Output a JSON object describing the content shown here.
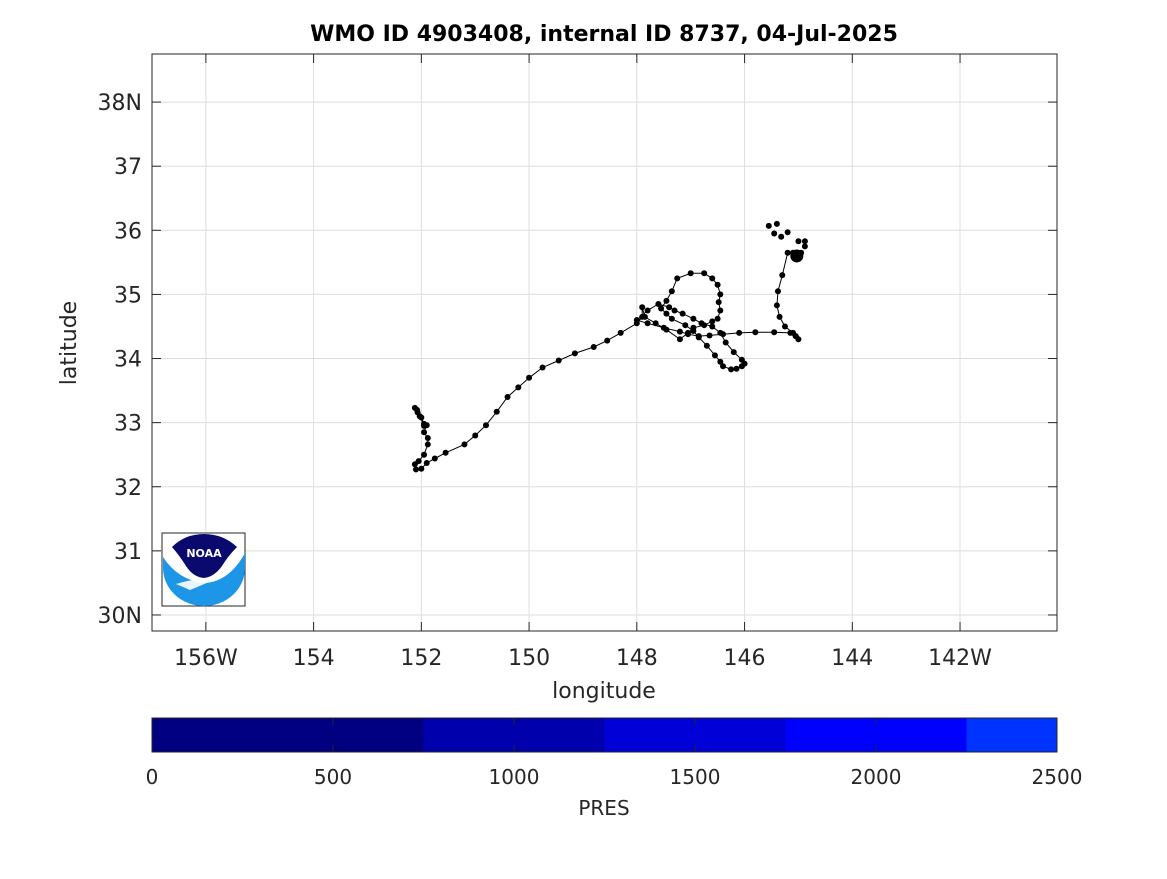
{
  "chart_data": [
    {
      "type": "scatter",
      "title": "WMO ID 4903408, internal ID 8737, 04-Jul-2025",
      "xlabel": "longitude",
      "ylabel": "latitude",
      "xlim": [
        -157,
        -140.2
      ],
      "ylim": [
        29.75,
        38.75
      ],
      "grid": true,
      "line_color": "#000000",
      "marker_color": "#000000",
      "x_ticks": [
        {
          "value": -156,
          "label": "156W"
        },
        {
          "value": -154,
          "label": "154"
        },
        {
          "value": -152,
          "label": "152"
        },
        {
          "value": -150,
          "label": "150"
        },
        {
          "value": -148,
          "label": "148"
        },
        {
          "value": -146,
          "label": "146"
        },
        {
          "value": -144,
          "label": "144"
        },
        {
          "value": -142,
          "label": "142W"
        }
      ],
      "y_ticks": [
        {
          "value": 30,
          "label": "30N"
        },
        {
          "value": 31,
          "label": "31"
        },
        {
          "value": 32,
          "label": "32"
        },
        {
          "value": 33,
          "label": "33"
        },
        {
          "value": 34,
          "label": "34"
        },
        {
          "value": 35,
          "label": "35"
        },
        {
          "value": 36,
          "label": "36"
        },
        {
          "value": 37,
          "label": "37"
        },
        {
          "value": 38,
          "label": "38N"
        }
      ],
      "track": [
        [
          -145.03,
          35.6
        ],
        [
          -145.1,
          35.65
        ],
        [
          -145.2,
          35.65
        ],
        [
          -145.3,
          35.3
        ],
        [
          -145.38,
          35.05
        ],
        [
          -145.4,
          34.83
        ],
        [
          -145.35,
          34.65
        ],
        [
          -145.25,
          34.5
        ],
        [
          -145.1,
          34.4
        ],
        [
          -145.05,
          34.35
        ],
        [
          -145.0,
          34.3
        ],
        [
          -145.05,
          34.35
        ],
        [
          -145.15,
          34.4
        ],
        [
          -145.45,
          34.41
        ],
        [
          -145.8,
          34.41
        ],
        [
          -146.1,
          34.4
        ],
        [
          -146.4,
          34.38
        ],
        [
          -146.65,
          34.36
        ],
        [
          -146.85,
          34.35
        ],
        [
          -147.05,
          34.38
        ],
        [
          -147.2,
          34.42
        ],
        [
          -147.5,
          34.48
        ],
        [
          -147.8,
          34.55
        ],
        [
          -148.0,
          34.6
        ],
        [
          -147.8,
          34.75
        ],
        [
          -147.6,
          34.85
        ],
        [
          -147.4,
          34.8
        ],
        [
          -147.3,
          34.75
        ],
        [
          -147.15,
          34.7
        ],
        [
          -146.95,
          34.62
        ],
        [
          -146.8,
          34.55
        ],
        [
          -146.6,
          34.5
        ],
        [
          -146.45,
          34.4
        ],
        [
          -146.35,
          34.25
        ],
        [
          -146.2,
          34.1
        ],
        [
          -146.05,
          33.98
        ],
        [
          -146.0,
          33.92
        ],
        [
          -146.05,
          33.88
        ],
        [
          -146.15,
          33.84
        ],
        [
          -146.25,
          33.83
        ],
        [
          -146.4,
          33.88
        ],
        [
          -146.45,
          33.95
        ],
        [
          -146.55,
          34.05
        ],
        [
          -146.7,
          34.2
        ],
        [
          -146.85,
          34.33
        ],
        [
          -146.95,
          34.43
        ],
        [
          -147.1,
          34.52
        ],
        [
          -147.35,
          34.62
        ],
        [
          -147.45,
          34.7
        ],
        [
          -147.55,
          34.78
        ],
        [
          -147.45,
          34.9
        ],
        [
          -147.35,
          35.05
        ],
        [
          -147.25,
          35.25
        ],
        [
          -147.0,
          35.33
        ],
        [
          -146.75,
          35.33
        ],
        [
          -146.6,
          35.25
        ],
        [
          -146.5,
          35.15
        ],
        [
          -146.45,
          35.0
        ],
        [
          -146.48,
          34.88
        ],
        [
          -146.45,
          34.75
        ],
        [
          -146.5,
          34.62
        ],
        [
          -146.6,
          34.58
        ],
        [
          -146.75,
          34.52
        ],
        [
          -146.95,
          34.48
        ],
        [
          -147.05,
          34.4
        ],
        [
          -147.2,
          34.3
        ],
        [
          -147.45,
          34.45
        ],
        [
          -147.65,
          34.55
        ],
        [
          -147.85,
          34.65
        ],
        [
          -147.9,
          34.8
        ],
        [
          -147.9,
          34.65
        ],
        [
          -148.0,
          34.55
        ],
        [
          -148.3,
          34.4
        ],
        [
          -148.55,
          34.28
        ],
        [
          -148.8,
          34.18
        ],
        [
          -149.15,
          34.08
        ],
        [
          -149.45,
          33.97
        ],
        [
          -149.75,
          33.86
        ],
        [
          -150.0,
          33.7
        ],
        [
          -150.2,
          33.55
        ],
        [
          -150.4,
          33.4
        ],
        [
          -150.6,
          33.17
        ],
        [
          -150.8,
          32.96
        ],
        [
          -151.0,
          32.8
        ],
        [
          -151.2,
          32.66
        ],
        [
          -151.55,
          32.53
        ],
        [
          -151.75,
          32.44
        ],
        [
          -151.9,
          32.37
        ],
        [
          -152.0,
          32.28
        ],
        [
          -152.1,
          32.27
        ],
        [
          -152.12,
          32.35
        ],
        [
          -152.05,
          32.4
        ],
        [
          -151.95,
          32.5
        ],
        [
          -151.88,
          32.66
        ],
        [
          -151.88,
          32.76
        ],
        [
          -151.95,
          32.85
        ],
        [
          -151.9,
          32.96
        ],
        [
          -151.95,
          32.98
        ],
        [
          -152.0,
          33.08
        ],
        [
          -152.07,
          33.16
        ],
        [
          -152.12,
          33.23
        ],
        [
          -152.08,
          33.2
        ],
        [
          -152.03,
          33.1
        ],
        [
          -151.95,
          32.95
        ]
      ],
      "last_position": [
        -145.03,
        35.6
      ],
      "extra_points": [
        [
          -145.55,
          36.07
        ],
        [
          -145.4,
          36.1
        ],
        [
          -145.45,
          35.95
        ],
        [
          -145.32,
          35.9
        ],
        [
          -145.2,
          35.97
        ],
        [
          -145.0,
          35.83
        ],
        [
          -144.88,
          35.83
        ],
        [
          -144.88,
          35.75
        ],
        [
          -144.95,
          35.65
        ],
        [
          -145.0,
          35.58
        ]
      ]
    },
    {
      "type": "heatmap",
      "xlabel": "PRES",
      "xlim": [
        0,
        2500
      ],
      "ticks": [
        0,
        500,
        1000,
        1500,
        2000,
        2500
      ],
      "bins": [
        {
          "from": 0,
          "to": 750,
          "color": "#000080"
        },
        {
          "from": 750,
          "to": 1250,
          "color": "#0000ac"
        },
        {
          "from": 1250,
          "to": 1750,
          "color": "#0000d7"
        },
        {
          "from": 1750,
          "to": 2250,
          "color": "#0000ff"
        },
        {
          "from": 2250,
          "to": 2500,
          "color": "#0033ff"
        }
      ]
    }
  ],
  "logo": {
    "text": "NOAA",
    "navy": "#0a0a6e",
    "blue": "#1e96e8"
  },
  "colors": {
    "grid": "#dedede",
    "axis": "#262626",
    "text": "#262626",
    "title": "#000000"
  }
}
